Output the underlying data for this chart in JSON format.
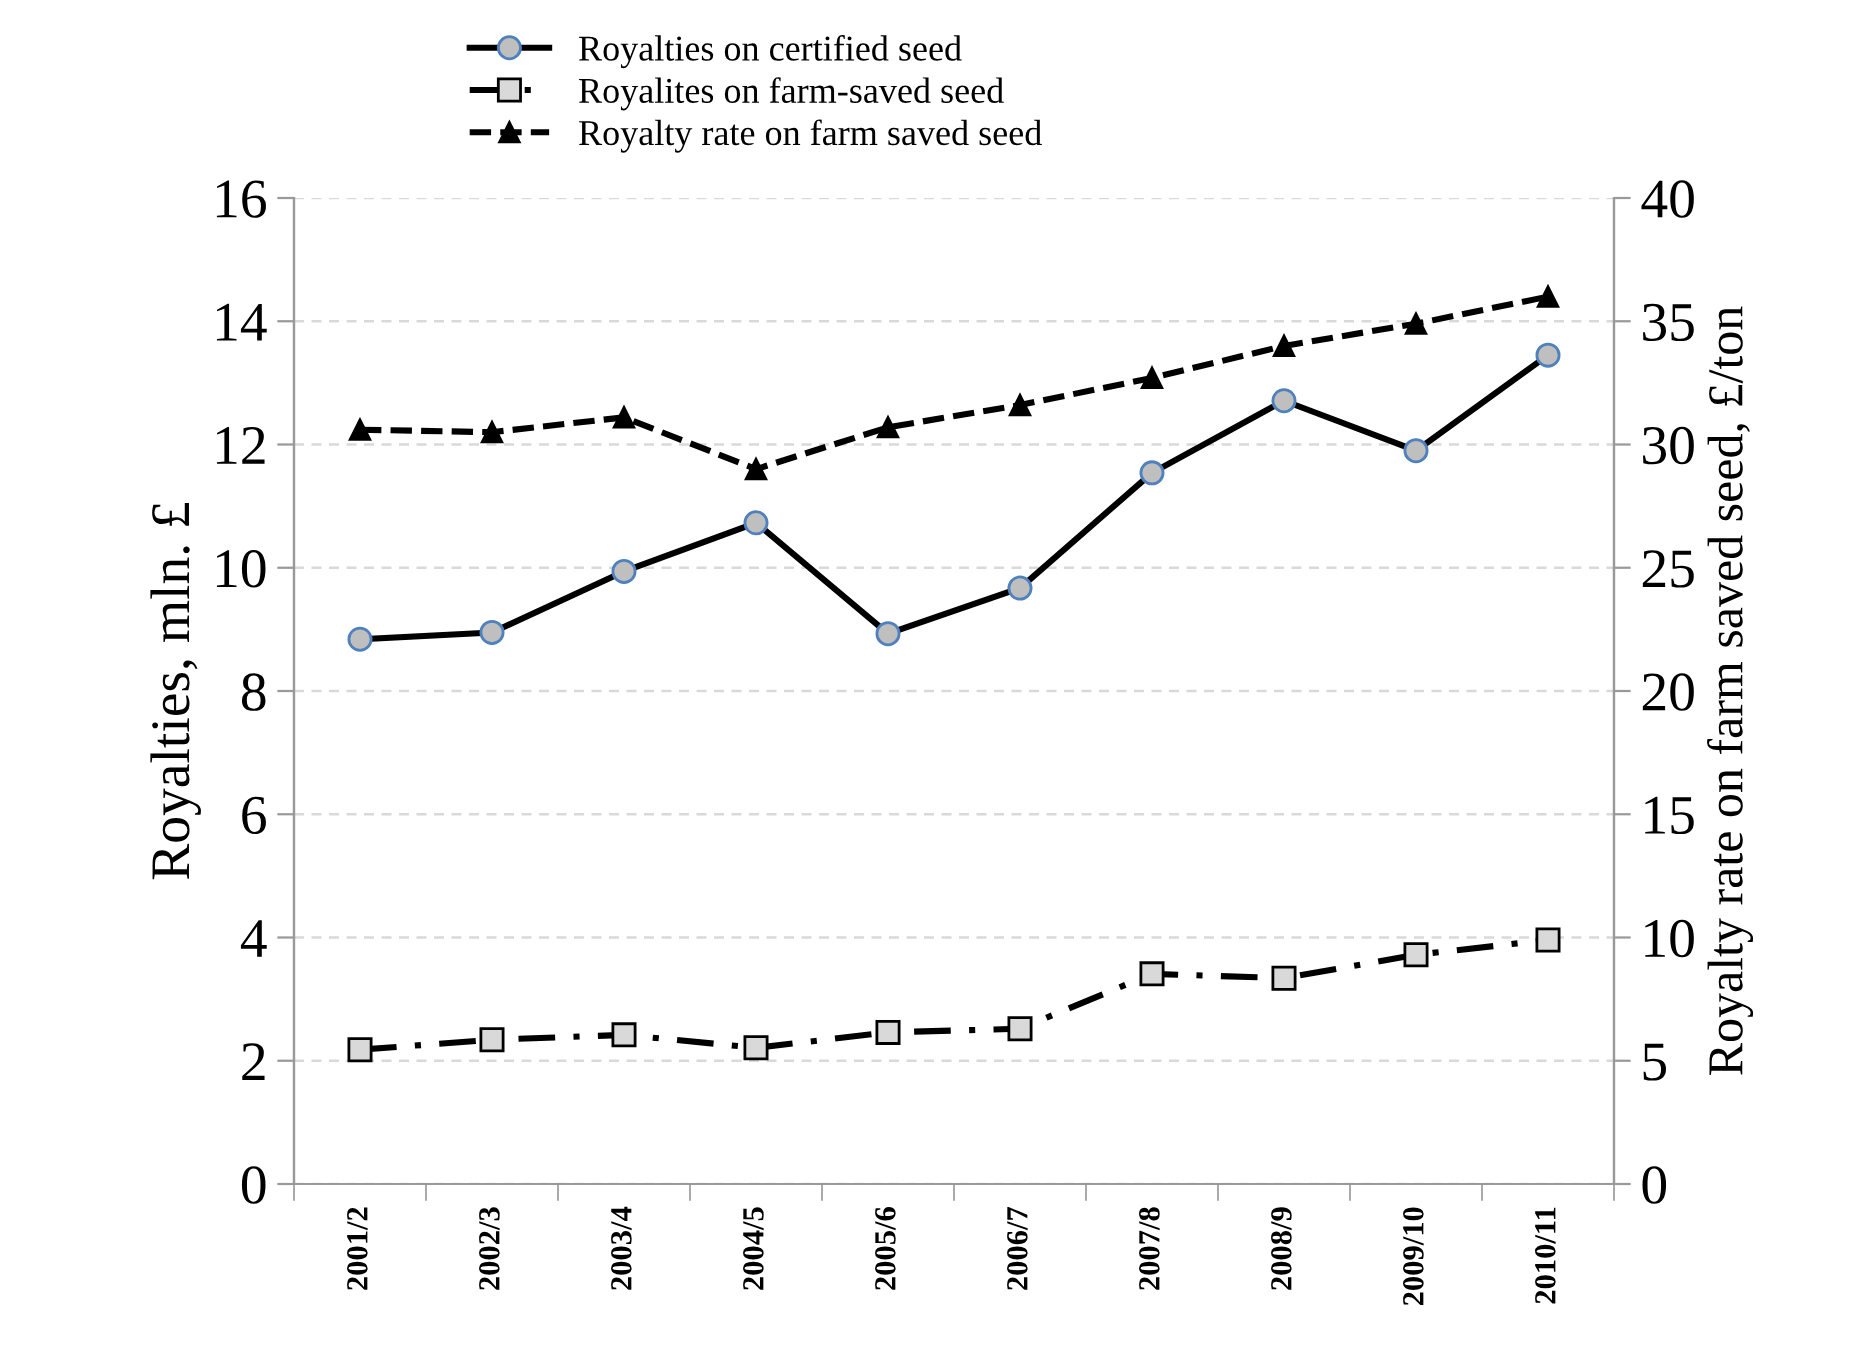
{
  "chart_data": {
    "type": "line",
    "ylabel": "Royalties, mln. £",
    "y2label": "Royalty rate on farm saved seed, £/ton",
    "categories": [
      "2001/2",
      "2002/3",
      "2003/4",
      "2004/5",
      "2005/6",
      "2006/7",
      "2007/8",
      "2008/9",
      "2009/10",
      "2010/11"
    ],
    "series": [
      {
        "name": "Royalties on certified seed",
        "color": "#000000",
        "marker": "circle",
        "line_style": "solid",
        "values": [
          8.84,
          8.95,
          9.94,
          10.73,
          8.93,
          9.67,
          11.54,
          12.71,
          11.9,
          13.45
        ]
      },
      {
        "name": "Royalites on farm-saved seed",
        "color": "#000000",
        "marker": "square",
        "line_style": "dashdot",
        "values": [
          2.18,
          2.34,
          2.42,
          2.21,
          2.46,
          2.52,
          3.41,
          3.34,
          3.72,
          3.96
        ]
      },
      {
        "name": "Royalty rate on farm saved seed",
        "color": "#000000",
        "marker": "triangle",
        "line_style": "dashed",
        "axis": "y2",
        "values": [
          30.6,
          30.5,
          31.1,
          29.0,
          30.7,
          31.6,
          32.7,
          34.0,
          34.9,
          36.0
        ]
      }
    ],
    "ylim": [
      0,
      16
    ],
    "yticks": [
      0,
      2,
      4,
      6,
      8,
      10,
      12,
      14,
      16
    ],
    "y2lim": [
      0,
      40
    ],
    "y2ticks": [
      0,
      5,
      10,
      15,
      20,
      25,
      30,
      35,
      40
    ],
    "grid": "y",
    "legend": "top"
  }
}
